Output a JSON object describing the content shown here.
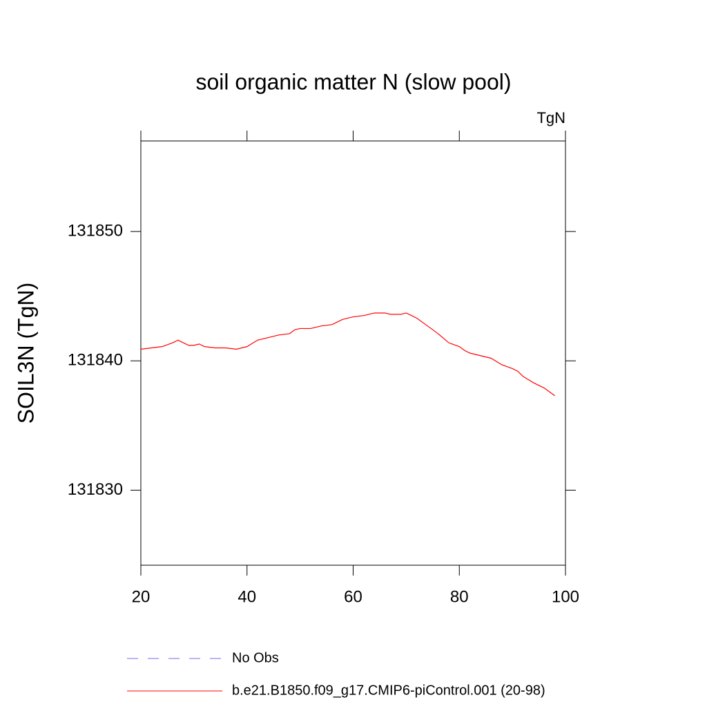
{
  "chart_data": {
    "type": "line",
    "title": "soil organic matter N (slow pool)",
    "units": "TgN",
    "y_label": "SOIL3N  (TgN)",
    "x": [
      20,
      22,
      24,
      26,
      27,
      28,
      29,
      30,
      31,
      32,
      34,
      36,
      38,
      40,
      42,
      44,
      46,
      48,
      49,
      50,
      52,
      54,
      56,
      57,
      58,
      60,
      62,
      64,
      65,
      66,
      67,
      68,
      69,
      70,
      71,
      72,
      74,
      76,
      78,
      80,
      81,
      82,
      84,
      86,
      88,
      90,
      91,
      92,
      94,
      96,
      98
    ],
    "series": [
      {
        "name": "No Obs",
        "color": "#7b68ee",
        "dash": true,
        "values": [
          null,
          null,
          null,
          null,
          null,
          null,
          null,
          null,
          null,
          null,
          null,
          null,
          null,
          null,
          null,
          null,
          null,
          null,
          null,
          null,
          null,
          null,
          null,
          null,
          null,
          null,
          null,
          null,
          null,
          null,
          null,
          null,
          null,
          null,
          null,
          null,
          null,
          null,
          null,
          null,
          null,
          null,
          null,
          null,
          null,
          null,
          null,
          null,
          null,
          null,
          null
        ]
      },
      {
        "name": "b.e21.B1850.f09_g17.CMIP6-piControl.001 (20-98)",
        "color": "#ff0000",
        "dash": false,
        "values": [
          131840.9,
          131841.0,
          131841.1,
          131841.4,
          131841.6,
          131841.4,
          131841.2,
          131841.2,
          131841.3,
          131841.1,
          131841.0,
          131841.0,
          131840.9,
          131841.1,
          131841.6,
          131841.8,
          131842.0,
          131842.1,
          131842.4,
          131842.5,
          131842.5,
          131842.7,
          131842.8,
          131843.0,
          131843.2,
          131843.4,
          131843.5,
          131843.7,
          131843.7,
          131843.7,
          131843.6,
          131843.6,
          131843.6,
          131843.7,
          131843.5,
          131843.3,
          131842.7,
          131842.1,
          131841.4,
          131841.1,
          131840.8,
          131840.6,
          131840.4,
          131840.2,
          131839.7,
          131839.4,
          131839.2,
          131838.8,
          131838.3,
          131837.9,
          131837.3
        ]
      }
    ],
    "xlim": [
      20,
      100
    ],
    "xticks": [
      20,
      40,
      60,
      80,
      100
    ],
    "ylim": [
      131824.2,
      131857.0
    ],
    "yticks": [
      131830,
      131840,
      131850
    ]
  }
}
